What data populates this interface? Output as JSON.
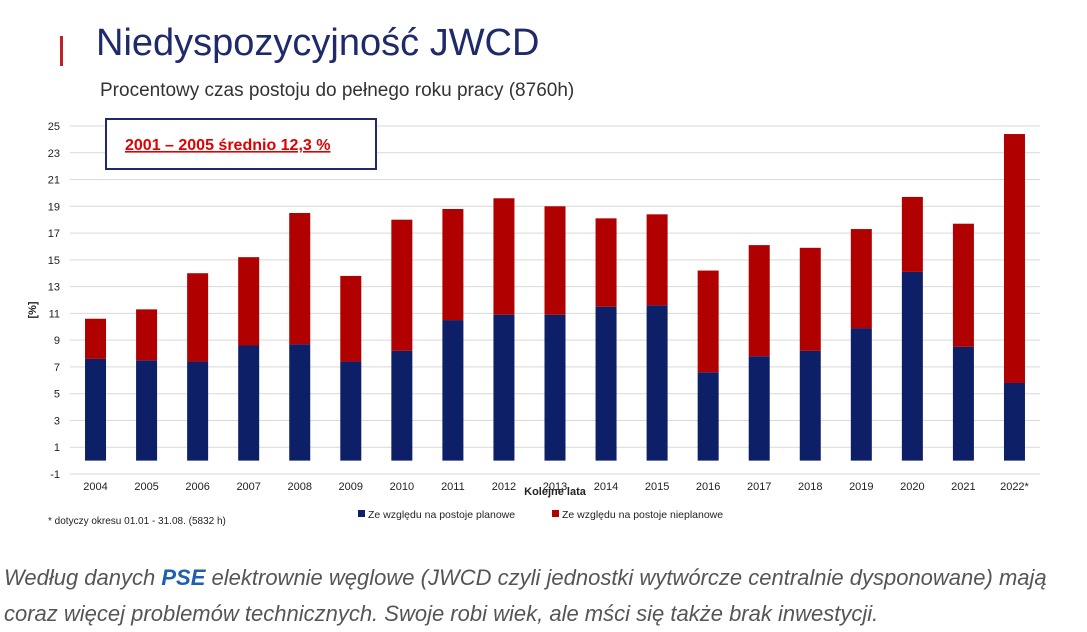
{
  "slide": {
    "title": "Niedyspozycyjność JWCD",
    "subtitle": "Procentowy czas postoju do pełnego roku pracy (8760h)",
    "annotation": "2001 – 2005 średnio 12,3 %",
    "footnote": "* dotyczy okresu 01.01 - 31.08. (5832 h)"
  },
  "caption": {
    "before": "Według danych ",
    "link": "PSE",
    "after": " elektrownie węglowe (JWCD czyli jednostki wytwórcze centralnie dysponowane) mają coraz więcej problemów technicznych. Swoje robi wiek, ale mści się także brak inwestycji."
  },
  "colors": {
    "planned": "#0d1f66",
    "unplanned": "#b00000",
    "annotation_text": "#e00000",
    "annotation_border": "#1f2a6b",
    "grid": "#d9d9d9"
  },
  "chart_data": {
    "type": "bar",
    "stacked": true,
    "categories": [
      "2004",
      "2005",
      "2006",
      "2007",
      "2008",
      "2009",
      "2010",
      "2011",
      "2012",
      "2013",
      "2014",
      "2015",
      "2016",
      "2017",
      "2018",
      "2019",
      "2020",
      "2021",
      "2022*"
    ],
    "series": [
      {
        "name": "Ze względu na postoje planowe",
        "values": [
          7.6,
          7.5,
          7.4,
          8.6,
          8.7,
          7.4,
          8.2,
          10.5,
          10.9,
          10.9,
          11.5,
          11.6,
          6.6,
          7.8,
          8.2,
          9.9,
          14.1,
          8.5,
          5.8
        ]
      },
      {
        "name": "Ze względu na postoje nieplanowe",
        "values": [
          3.0,
          3.8,
          6.6,
          6.6,
          9.8,
          6.4,
          9.8,
          8.3,
          8.7,
          8.1,
          6.6,
          6.8,
          7.6,
          8.3,
          7.7,
          7.4,
          5.6,
          9.2,
          18.6
        ]
      }
    ],
    "xlabel": "Kolejne lata",
    "ylabel": "[%]",
    "ylim": [
      -1,
      25
    ],
    "yticks": [
      -1,
      1,
      3,
      5,
      7,
      9,
      11,
      13,
      15,
      17,
      19,
      21,
      23,
      25
    ],
    "grid": true,
    "legend": "bottom"
  }
}
